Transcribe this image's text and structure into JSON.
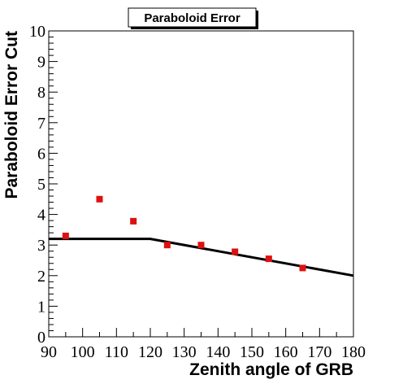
{
  "chart_data": {
    "type": "scatter",
    "title": "Paraboloid Error",
    "xlabel": "Zenith angle of GRB",
    "ylabel": "Paraboloid Error Cut",
    "xlim": [
      90,
      180
    ],
    "ylim": [
      0,
      10
    ],
    "x_ticks": [
      90,
      100,
      110,
      120,
      130,
      140,
      150,
      160,
      170,
      180
    ],
    "y_ticks": [
      0,
      1,
      2,
      3,
      4,
      5,
      6,
      7,
      8,
      9,
      10
    ],
    "grid": false,
    "legend": "none",
    "series": [
      {
        "type": "scatter",
        "marker": "square",
        "color": "#dd1111",
        "x": [
          95,
          105,
          115,
          125,
          135,
          145,
          155,
          165
        ],
        "y": [
          3.3,
          4.5,
          3.78,
          3.0,
          3.0,
          2.78,
          2.55,
          2.25
        ]
      },
      {
        "type": "line",
        "color": "#000000",
        "x": [
          90,
          120,
          180
        ],
        "y": [
          3.2,
          3.2,
          2.0
        ]
      }
    ]
  }
}
